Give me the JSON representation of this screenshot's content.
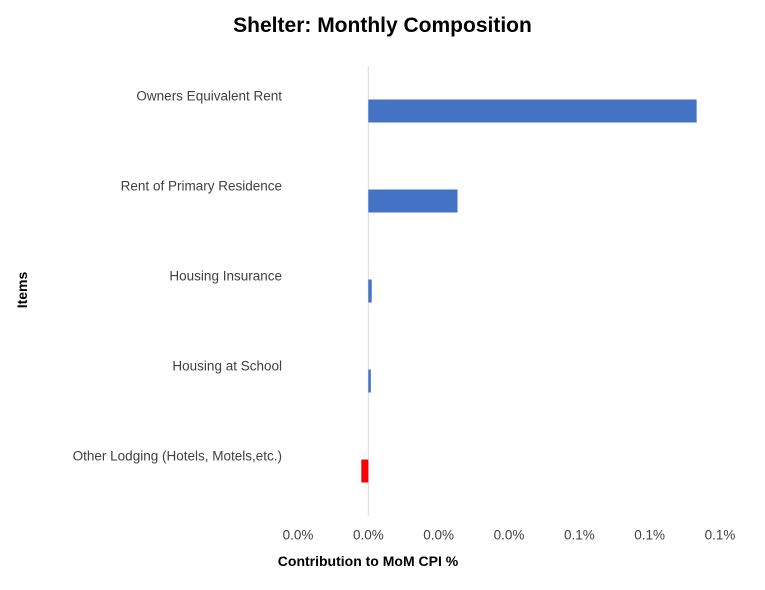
{
  "chart_data": {
    "type": "bar",
    "orientation": "horizontal",
    "title": "Shelter: Monthly Composition",
    "xlabel": "Contribution to MoM CPI %",
    "ylabel": "Items",
    "categories": [
      "Owners Equivalent Rent",
      "Rent of Primary Residence",
      "Housing Insurance",
      "Housing at School",
      "Other Lodging (Hotels, Motels,etc.)"
    ],
    "values": [
      0.1167,
      0.0317,
      0.0012,
      0.0007,
      -0.0025
    ],
    "colors": [
      "#4472C4",
      "#4472C4",
      "#4472C4",
      "#4472C4",
      "#FF0000"
    ],
    "xlim": [
      -0.025,
      0.125
    ],
    "x_ticks": [
      -0.025,
      0,
      0.025,
      0.05,
      0.075,
      0.1,
      0.125
    ],
    "x_tick_labels": [
      "0.0%",
      "0.0%",
      "0.0%",
      "0.0%",
      "0.1%",
      "0.1%",
      "0.1%"
    ],
    "grid": false,
    "legend": null
  }
}
